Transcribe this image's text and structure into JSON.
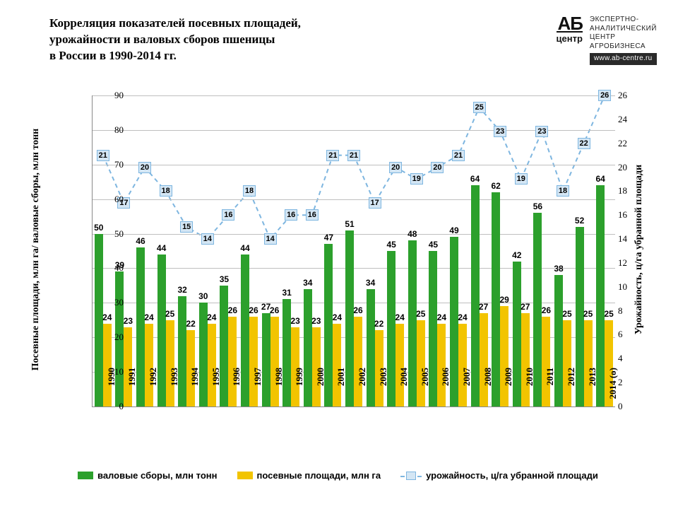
{
  "title_lines": [
    "Корреляция показателей посевных площадей,",
    "урожайности и валовых сборов пшеницы",
    "в России в 1990-2014 гг."
  ],
  "logo": {
    "ab": "АБ",
    "sub": "центр",
    "r1": "ЭКСПЕРТНО-",
    "r2": "АНАЛИТИЧЕСКИЙ",
    "r3": "ЦЕНТР",
    "r4": "АГРОБИЗНЕСА",
    "url": "www.ab-centre.ru"
  },
  "y_left_label": "Посевные площади, млн га/ валовые сборы, млн тонн",
  "y_right_label": "Урожайность, ц/га убранной площади",
  "y_left": {
    "min": 0,
    "max": 90,
    "step": 10
  },
  "y_right": {
    "min": 0,
    "max": 26,
    "step": 2
  },
  "colors": {
    "bar1": "#2ca02c",
    "bar2": "#f2c400",
    "line": "#7eb6e0",
    "line_fill": "#d4e6f4",
    "grid": "#bfbfbf"
  },
  "legend": {
    "s1": "валовые сборы, млн тонн",
    "s2": "посевные площади, млн га",
    "s3": "урожайность, ц/га убранной площади"
  },
  "years": [
    "1990",
    "1991",
    "1992",
    "1993",
    "1994",
    "1995",
    "1996",
    "1997",
    "1998",
    "1999",
    "2000",
    "2001",
    "2002",
    "2003",
    "2004",
    "2005",
    "2006",
    "2007",
    "2008",
    "2009",
    "2010",
    "2011",
    "2012",
    "2013",
    "2014 (о)"
  ],
  "harvest": [
    50,
    39,
    46,
    44,
    32,
    30,
    35,
    44,
    27,
    31,
    34,
    47,
    51,
    34,
    45,
    48,
    45,
    49,
    64,
    62,
    42,
    56,
    38,
    52,
    64
  ],
  "area": [
    24,
    23,
    24,
    25,
    22,
    24,
    26,
    26,
    26,
    23,
    23,
    24,
    26,
    22,
    24,
    25,
    24,
    24,
    27,
    29,
    27,
    26,
    25,
    25,
    25
  ],
  "yield": [
    21,
    17,
    20,
    18,
    15,
    14,
    16,
    18,
    14,
    16,
    16,
    21,
    21,
    17,
    20,
    19,
    20,
    21,
    25,
    23,
    19,
    23,
    18,
    22,
    26
  ]
}
